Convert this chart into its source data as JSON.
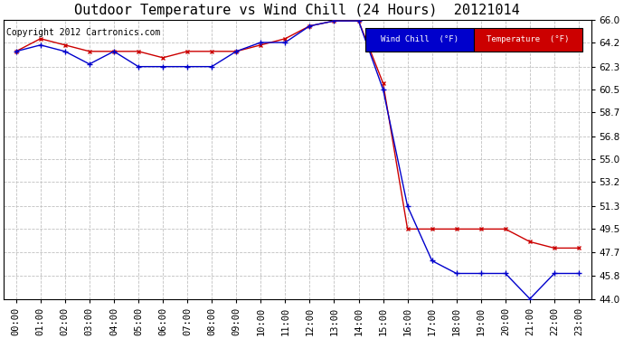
{
  "title": "Outdoor Temperature vs Wind Chill (24 Hours)  20121014",
  "copyright": "Copyright 2012 Cartronics.com",
  "background_color": "#ffffff",
  "plot_bg_color": "#ffffff",
  "grid_color": "#c0c0c0",
  "hours": [
    "00:00",
    "01:00",
    "02:00",
    "03:00",
    "04:00",
    "05:00",
    "06:00",
    "07:00",
    "08:00",
    "09:00",
    "10:00",
    "11:00",
    "12:00",
    "13:00",
    "14:00",
    "15:00",
    "16:00",
    "17:00",
    "18:00",
    "19:00",
    "20:00",
    "21:00",
    "22:00",
    "23:00"
  ],
  "temperature": [
    63.5,
    64.5,
    64.0,
    63.5,
    63.5,
    63.5,
    63.0,
    63.5,
    63.5,
    63.5,
    64.0,
    64.5,
    65.5,
    65.9,
    65.9,
    61.0,
    49.5,
    49.5,
    49.5,
    49.5,
    49.5,
    48.5,
    48.0,
    48.0
  ],
  "wind_chill": [
    63.5,
    64.0,
    63.5,
    62.5,
    63.5,
    62.3,
    62.3,
    62.3,
    62.3,
    63.5,
    64.2,
    64.2,
    65.5,
    65.9,
    65.9,
    60.5,
    51.3,
    47.0,
    46.0,
    46.0,
    46.0,
    44.0,
    46.0,
    46.0
  ],
  "temp_color": "#cc0000",
  "wind_color": "#0000cc",
  "ylim_min": 44.0,
  "ylim_max": 66.0,
  "yticks": [
    44.0,
    45.8,
    47.7,
    49.5,
    51.3,
    53.2,
    55.0,
    56.8,
    58.7,
    60.5,
    62.3,
    64.2,
    66.0
  ],
  "legend_wind_label": "Wind Chill  (°F)",
  "legend_temp_label": "Temperature  (°F)",
  "legend_wind_bg": "#0000cc",
  "legend_temp_bg": "#cc0000",
  "title_fontsize": 11,
  "tick_fontsize": 7.5,
  "copyright_fontsize": 7
}
